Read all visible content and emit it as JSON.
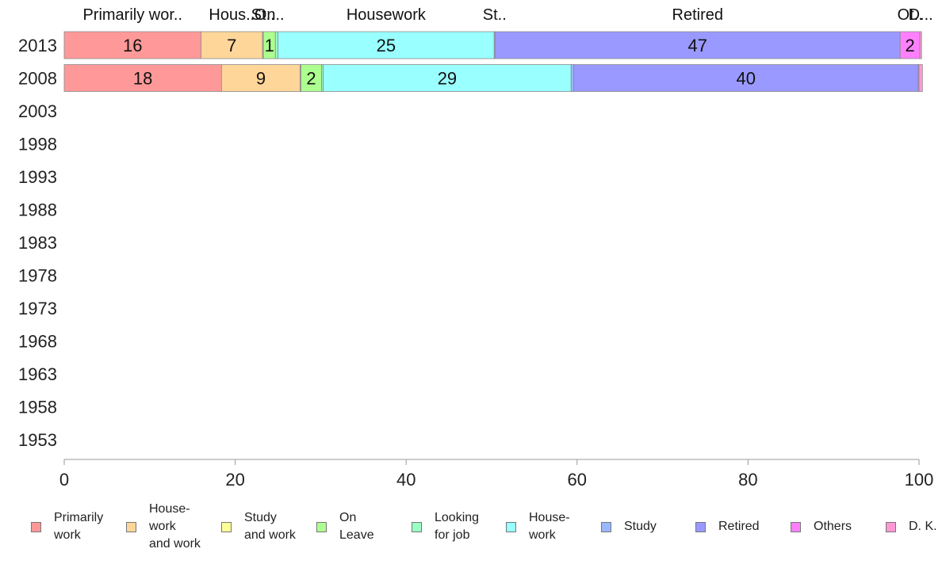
{
  "chart_data": {
    "type": "bar",
    "orientation": "horizontal",
    "stacked": true,
    "years": [
      "2013",
      "2008",
      "2003",
      "1998",
      "1993",
      "1988",
      "1983",
      "1978",
      "1973",
      "1968",
      "1963",
      "1958",
      "1953"
    ],
    "xlim": [
      0,
      100
    ],
    "xticks": [
      0,
      20,
      40,
      60,
      80,
      100
    ],
    "series": [
      {
        "name": "Primarily\nwork",
        "color": "#ff9999",
        "values": [
          16,
          18.4,
          null,
          null,
          null,
          null,
          null,
          null,
          null,
          null,
          null,
          null,
          null
        ]
      },
      {
        "name": "House-\nwork\nand work",
        "color": "#ffd699",
        "values": [
          7.2,
          9.2,
          null,
          null,
          null,
          null,
          null,
          null,
          null,
          null,
          null,
          null,
          null
        ]
      },
      {
        "name": "Study\nand work",
        "color": "#ffff99",
        "values": [
          0.1,
          0.1,
          null,
          null,
          null,
          null,
          null,
          null,
          null,
          null,
          null,
          null,
          null
        ]
      },
      {
        "name": "On\nLeave",
        "color": "#adff8f",
        "values": [
          1.4,
          2.4,
          null,
          null,
          null,
          null,
          null,
          null,
          null,
          null,
          null,
          null,
          null
        ]
      },
      {
        "name": "Looking\nfor job",
        "color": "#99ffc2",
        "values": [
          0.3,
          0.2,
          null,
          null,
          null,
          null,
          null,
          null,
          null,
          null,
          null,
          null,
          null
        ]
      },
      {
        "name": "House-\nwork",
        "color": "#99ffff",
        "values": [
          25.3,
          29.0,
          null,
          null,
          null,
          null,
          null,
          null,
          null,
          null,
          null,
          null,
          null
        ]
      },
      {
        "name": "Study",
        "color": "#99b8ff",
        "values": [
          0.1,
          0.3,
          null,
          null,
          null,
          null,
          null,
          null,
          null,
          null,
          null,
          null,
          null
        ]
      },
      {
        "name": "Retired",
        "color": "#9999ff",
        "values": [
          47.4,
          40.3,
          null,
          null,
          null,
          null,
          null,
          null,
          null,
          null,
          null,
          null,
          null
        ]
      },
      {
        "name": "Others",
        "color": "#ff80ff",
        "values": [
          2.3,
          0.1,
          null,
          null,
          null,
          null,
          null,
          null,
          null,
          null,
          null,
          null,
          null
        ]
      },
      {
        "name": "D. K.",
        "color": "#ff99d6",
        "values": [
          0.2,
          0.4,
          null,
          null,
          null,
          null,
          null,
          null,
          null,
          null,
          null,
          null,
          null
        ]
      }
    ],
    "segment_labels": {
      "2013": [
        "16",
        "7",
        "",
        "1",
        "",
        "25",
        "",
        "47",
        "2",
        ""
      ],
      "2008": [
        "18",
        "9",
        "",
        "2",
        "",
        "29",
        "",
        "40",
        "",
        ""
      ]
    },
    "top_labels": [
      {
        "text": "Primarily wor..",
        "series": 0
      },
      {
        "text": "Hous..",
        "series": 1
      },
      {
        "text": "St..",
        "series": 2
      },
      {
        "text": "On..",
        "series": 3
      },
      {
        "text": "Housework",
        "series": 5
      },
      {
        "text": "St..",
        "series": 6
      },
      {
        "text": "Retired",
        "series": 7
      },
      {
        "text": "Ot..",
        "series": 8
      },
      {
        "text": "D...",
        "series": 9
      }
    ],
    "grid": false,
    "legend_position": "bottom"
  }
}
